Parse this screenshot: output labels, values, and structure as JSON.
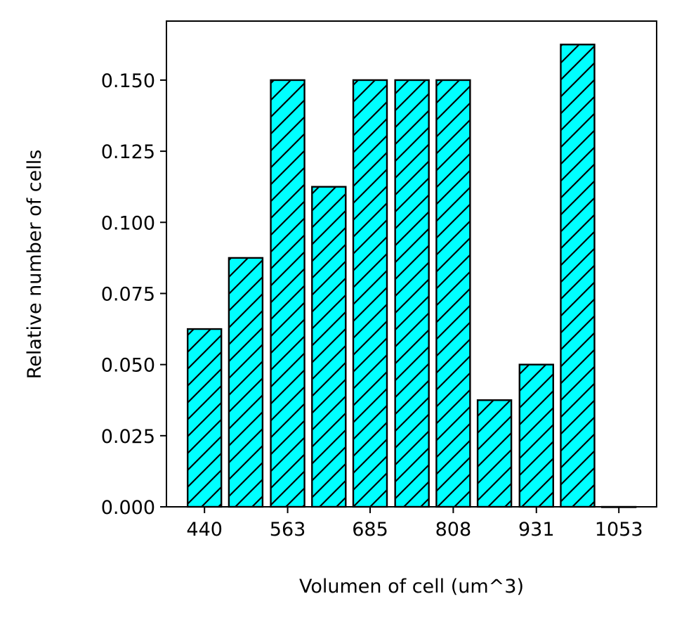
{
  "chart_data": {
    "type": "bar",
    "title": "",
    "xlabel": "Volumen of cell (um^3)",
    "ylabel": "Relative number of cells",
    "x_tick_labels": [
      "440",
      "563",
      "685",
      "808",
      "931",
      "1053"
    ],
    "y_tick_labels": [
      "0.000",
      "0.025",
      "0.050",
      "0.075",
      "0.100",
      "0.125",
      "0.150"
    ],
    "ylim": [
      0,
      0.17
    ],
    "bins": [
      {
        "x": 440,
        "value": 0.0625
      },
      {
        "x": 501,
        "value": 0.0875
      },
      {
        "x": 563,
        "value": 0.15
      },
      {
        "x": 624,
        "value": 0.1125
      },
      {
        "x": 685,
        "value": 0.15
      },
      {
        "x": 747,
        "value": 0.15
      },
      {
        "x": 808,
        "value": 0.15
      },
      {
        "x": 869,
        "value": 0.0375
      },
      {
        "x": 931,
        "value": 0.05
      },
      {
        "x": 992,
        "value": 0.1625
      },
      {
        "x": 1053,
        "value": 0.0
      }
    ],
    "bar_color": "#00ffff",
    "edge_color": "#000000",
    "hatch": "diagonal",
    "grid": false,
    "legend": "none"
  }
}
